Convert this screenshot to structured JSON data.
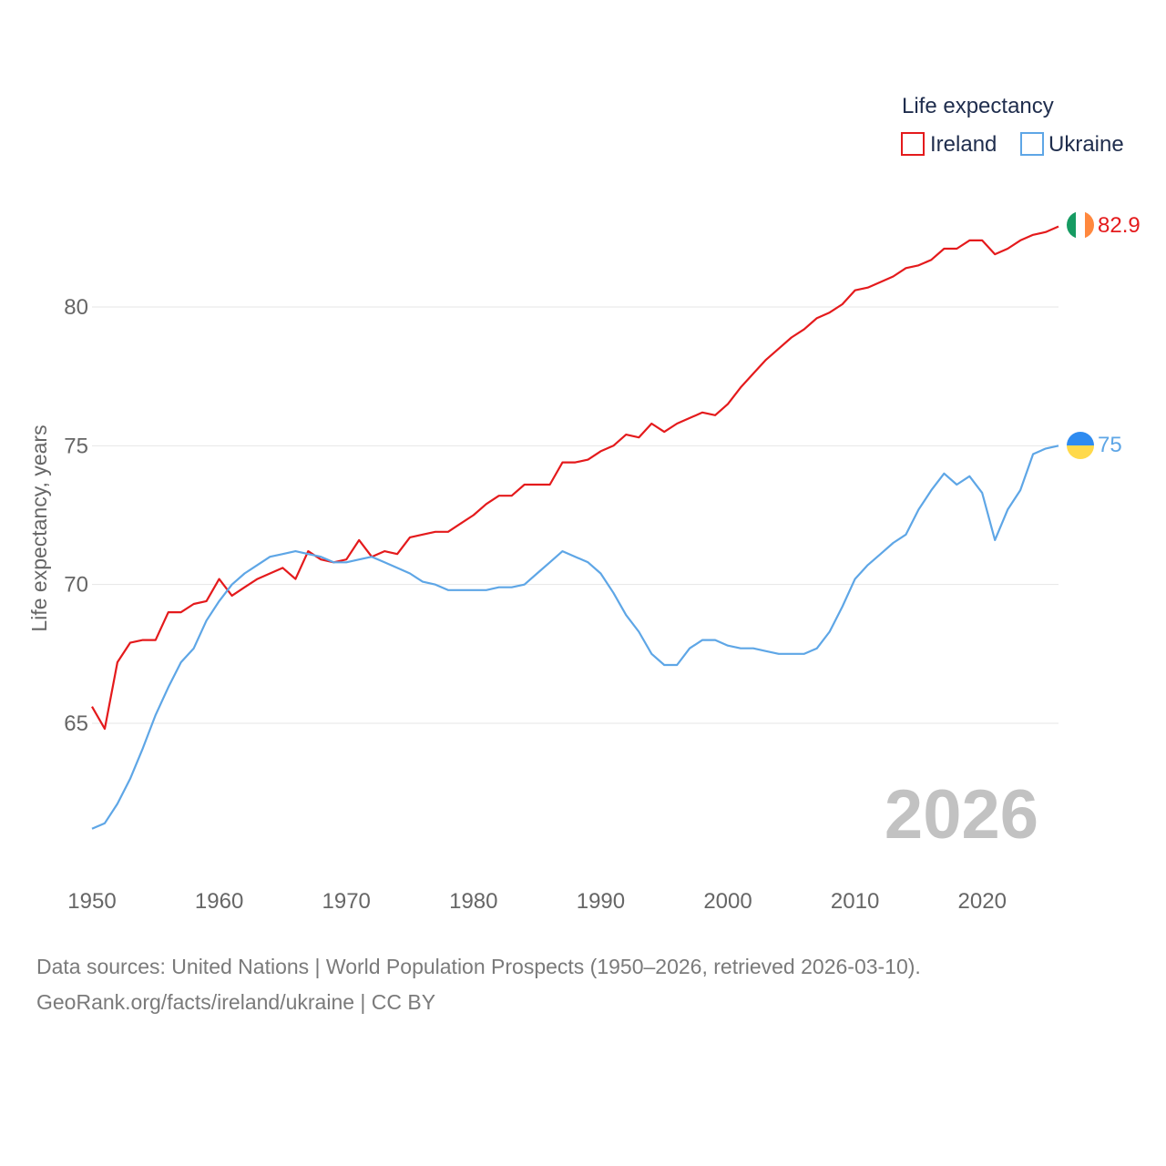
{
  "chart_data": {
    "type": "line",
    "title": "",
    "legend_title": "Life expectancy",
    "xlabel": "",
    "ylabel": "Life expectancy, years",
    "xlim": [
      1950,
      2026
    ],
    "ylim": [
      60.5,
      85
    ],
    "x_ticks": [
      1950,
      1960,
      1970,
      1980,
      1990,
      2000,
      2010,
      2020
    ],
    "y_ticks": [
      65,
      70,
      75,
      80
    ],
    "grid": true,
    "legend_position": "top-right",
    "current_year_label": "2026",
    "x": [
      1950,
      1951,
      1952,
      1953,
      1954,
      1955,
      1956,
      1957,
      1958,
      1959,
      1960,
      1961,
      1962,
      1963,
      1964,
      1965,
      1966,
      1967,
      1968,
      1969,
      1970,
      1971,
      1972,
      1973,
      1974,
      1975,
      1976,
      1977,
      1978,
      1979,
      1980,
      1981,
      1982,
      1983,
      1984,
      1985,
      1986,
      1987,
      1988,
      1989,
      1990,
      1991,
      1992,
      1993,
      1994,
      1995,
      1996,
      1997,
      1998,
      1999,
      2000,
      2001,
      2002,
      2003,
      2004,
      2005,
      2006,
      2007,
      2008,
      2009,
      2010,
      2011,
      2012,
      2013,
      2014,
      2015,
      2016,
      2017,
      2018,
      2019,
      2020,
      2021,
      2022,
      2023,
      2024,
      2025,
      2026
    ],
    "series": [
      {
        "name": "Ireland",
        "color": "#e41a1c",
        "end_label": "82.9",
        "flag": "ireland-flag",
        "values": [
          65.6,
          64.8,
          67.2,
          67.9,
          68.0,
          68.0,
          69.0,
          69.0,
          69.3,
          69.4,
          70.2,
          69.6,
          69.9,
          70.2,
          70.4,
          70.6,
          70.2,
          71.2,
          70.9,
          70.8,
          70.9,
          71.6,
          71.0,
          71.2,
          71.1,
          71.7,
          71.8,
          71.9,
          71.9,
          72.2,
          72.5,
          72.9,
          73.2,
          73.2,
          73.6,
          73.6,
          73.6,
          74.4,
          74.4,
          74.5,
          74.8,
          75.0,
          75.4,
          75.3,
          75.8,
          75.5,
          75.8,
          76.0,
          76.2,
          76.1,
          76.5,
          77.1,
          77.6,
          78.1,
          78.5,
          78.9,
          79.2,
          79.6,
          79.8,
          80.1,
          80.6,
          80.7,
          80.9,
          81.1,
          81.4,
          81.5,
          81.7,
          82.1,
          82.1,
          82.4,
          82.4,
          81.9,
          82.1,
          82.4,
          82.6,
          82.7,
          82.9
        ]
      },
      {
        "name": "Ukraine",
        "color": "#5ea6e6",
        "end_label": "75",
        "flag": "ukraine-flag",
        "values": [
          61.2,
          61.4,
          62.1,
          63.0,
          64.1,
          65.3,
          66.3,
          67.2,
          67.7,
          68.7,
          69.4,
          70.0,
          70.4,
          70.7,
          71.0,
          71.1,
          71.2,
          71.1,
          71.0,
          70.8,
          70.8,
          70.9,
          71.0,
          70.8,
          70.6,
          70.4,
          70.1,
          70.0,
          69.8,
          69.8,
          69.8,
          69.8,
          69.9,
          69.9,
          70.0,
          70.4,
          70.8,
          71.2,
          71.0,
          70.8,
          70.4,
          69.7,
          68.9,
          68.3,
          67.5,
          67.1,
          67.1,
          67.7,
          68.0,
          68.0,
          67.8,
          67.7,
          67.7,
          67.6,
          67.5,
          67.5,
          67.5,
          67.7,
          68.3,
          69.2,
          70.2,
          70.7,
          71.1,
          71.5,
          71.8,
          72.7,
          73.4,
          74.0,
          73.6,
          73.9,
          73.3,
          71.6,
          72.7,
          73.4,
          74.7,
          74.9,
          75.0
        ]
      }
    ]
  },
  "footer": {
    "line1": "Data sources: United Nations | World Population Prospects (1950–2026, retrieved 2026-03-10).",
    "line2": "GeoRank.org/facts/ireland/ukraine | CC BY"
  }
}
